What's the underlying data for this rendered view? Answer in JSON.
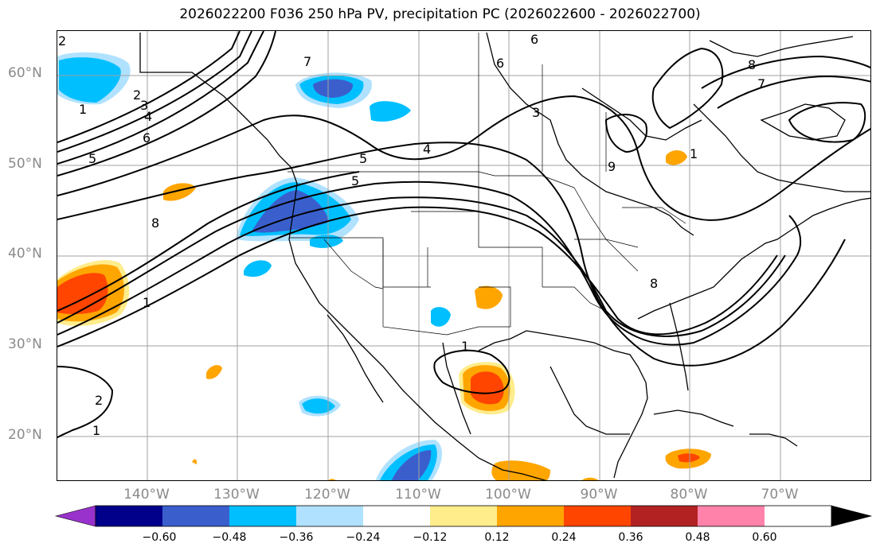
{
  "title": "2026022200 F036 250 hPa PV, precipitation PC (2026022600 - 2026022700)",
  "lat_labels": [
    "60°N",
    "50°N",
    "40°N",
    "30°N",
    "20°N"
  ],
  "lon_labels": [
    "140°W",
    "130°W",
    "120°W",
    "110°W",
    "100°W",
    "90°W",
    "80°W",
    "70°W"
  ],
  "colorbar": {
    "tick_labels": [
      "−0.60",
      "−0.48",
      "−0.36",
      "−0.24",
      "−0.12",
      "0.12",
      "0.24",
      "0.36",
      "0.48",
      "0.60"
    ],
    "colors": [
      "#9932CC",
      "#00008B",
      "#3A5FCD",
      "#00BFFF",
      "#B0E2FF",
      "#FFFFFF",
      "#FFEC8B",
      "#FFA500",
      "#FF4500",
      "#B22222",
      "#FF82AB"
    ]
  },
  "contour_labels": [
    "2",
    "1",
    "2",
    "3",
    "4",
    "5",
    "6",
    "7",
    "1",
    "8",
    "1",
    "2",
    "1",
    "6",
    "6",
    "3",
    "5",
    "4",
    "5",
    "8",
    "8",
    "7",
    "9",
    "1"
  ],
  "colors": {
    "title_text": "#000000",
    "axis_text": "#8a8a8a",
    "grid": "#a0a0a0",
    "coast": "#000000",
    "contour": "#000000"
  }
}
